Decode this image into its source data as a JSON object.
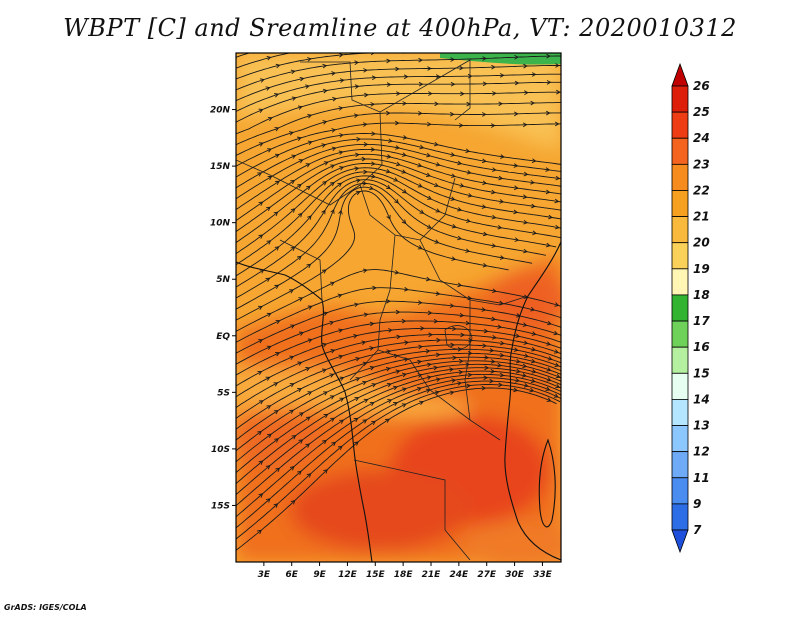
{
  "title": "WBPT [C] and Sreamline at 400hPa, VT: 2020010312",
  "credit": "GrADS: IGES/COLA",
  "map": {
    "lat_labels": [
      {
        "lat": 20,
        "label": "20N"
      },
      {
        "lat": 15,
        "label": "15N"
      },
      {
        "lat": 10,
        "label": "10N"
      },
      {
        "lat": 5,
        "label": "5N"
      },
      {
        "lat": 0,
        "label": "EQ"
      },
      {
        "lat": -5,
        "label": "5S"
      },
      {
        "lat": -10,
        "label": "10S"
      },
      {
        "lat": -15,
        "label": "15S"
      }
    ],
    "lon_labels": [
      {
        "lon": 3,
        "label": "3E"
      },
      {
        "lon": 6,
        "label": "6E"
      },
      {
        "lon": 9,
        "label": "9E"
      },
      {
        "lon": 12,
        "label": "12E"
      },
      {
        "lon": 15,
        "label": "15E"
      },
      {
        "lon": 18,
        "label": "18E"
      },
      {
        "lon": 21,
        "label": "21E"
      },
      {
        "lon": 24,
        "label": "24E"
      },
      {
        "lon": 27,
        "label": "27E"
      },
      {
        "lon": 30,
        "label": "30E"
      },
      {
        "lon": 33,
        "label": "33E"
      }
    ],
    "lon_range": [
      0,
      35
    ],
    "lat_range": [
      -20,
      25
    ]
  },
  "colorbar": {
    "levels": [
      "26",
      "25",
      "24",
      "23",
      "22",
      "21",
      "20",
      "19",
      "18",
      "17",
      "16",
      "15",
      "14",
      "13",
      "12",
      "11",
      "9",
      "7"
    ],
    "colors": [
      "#c00000",
      "#dc1e0a",
      "#ee3c14",
      "#f5641e",
      "#f78c1e",
      "#f5a01e",
      "#f8b93c",
      "#fad25a",
      "#fff5b4",
      "#32b432",
      "#6ed25a",
      "#b4f0a0",
      "#e6fff0",
      "#b4e6ff",
      "#8cc8ff",
      "#6eaaf5",
      "#4b8cf0",
      "#2d6ee6",
      "#1e50dc"
    ]
  },
  "colors": {
    "base_fill": "#f6a631",
    "warm_fill": "#f0701e",
    "hot_fill": "#e8451a",
    "cool_fill": "#f9c65a",
    "green_fill": "#3cb44b"
  }
}
